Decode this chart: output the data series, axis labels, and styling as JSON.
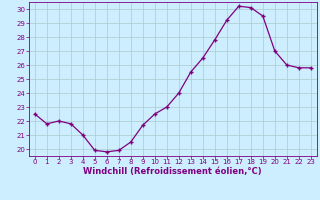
{
  "x": [
    0,
    1,
    2,
    3,
    4,
    5,
    6,
    7,
    8,
    9,
    10,
    11,
    12,
    13,
    14,
    15,
    16,
    17,
    18,
    19,
    20,
    21,
    22,
    23
  ],
  "y": [
    22.5,
    21.8,
    22.0,
    21.8,
    21.0,
    19.9,
    19.8,
    19.9,
    20.5,
    21.7,
    22.5,
    23.0,
    24.0,
    25.5,
    26.5,
    27.8,
    29.2,
    30.2,
    30.1,
    29.5,
    27.0,
    26.0,
    25.8,
    25.8
  ],
  "line_color": "#800080",
  "marker": "+",
  "marker_size": 4,
  "bg_color": "#cceeff",
  "grid_color": "#aacccc",
  "xlabel": "Windchill (Refroidissement éolien,°C)",
  "ylim": [
    19.5,
    30.5
  ],
  "yticks": [
    20,
    21,
    22,
    23,
    24,
    25,
    26,
    27,
    28,
    29,
    30
  ],
  "xticks": [
    0,
    1,
    2,
    3,
    4,
    5,
    6,
    7,
    8,
    9,
    10,
    11,
    12,
    13,
    14,
    15,
    16,
    17,
    18,
    19,
    20,
    21,
    22,
    23
  ],
  "axis_color": "#800080"
}
